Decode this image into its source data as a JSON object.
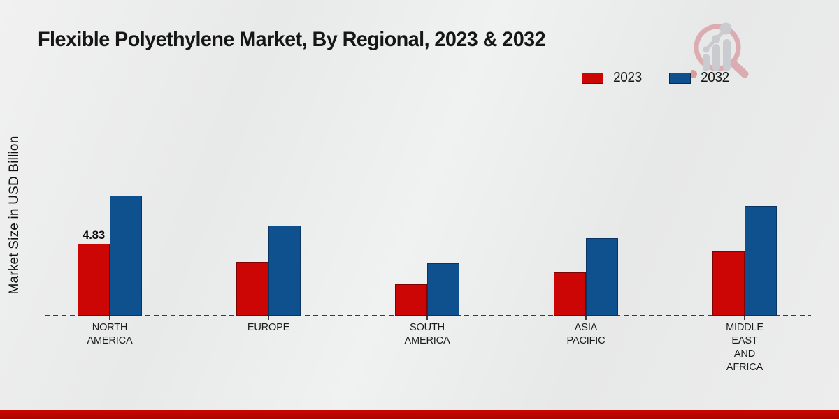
{
  "chart": {
    "title": "Flexible Polyethylene Market, By Regional, 2023 & 2032",
    "ylabel": "Market Size in USD Billion"
  },
  "legend": {
    "items": [
      {
        "label": "2023",
        "color": "#cc0605"
      },
      {
        "label": "2032",
        "color": "#0f518f"
      }
    ]
  },
  "chart_data": {
    "type": "bar",
    "title": "Flexible Polyethylene Market, By Regional, 2023 & 2032",
    "xlabel": "",
    "ylabel": "Market Size in USD Billion",
    "ylim": [
      0,
      9
    ],
    "grid": false,
    "legend_position": "top-right",
    "baseline_style": "dashed",
    "categories": [
      "NORTH AMERICA",
      "EUROPE",
      "SOUTH AMERICA",
      "ASIA PACIFIC",
      "MIDDLE EAST AND AFRICA"
    ],
    "category_label_lines": [
      [
        "NORTH",
        "AMERICA"
      ],
      [
        "EUROPE"
      ],
      [
        "SOUTH",
        "AMERICA"
      ],
      [
        "ASIA",
        "PACIFIC"
      ],
      [
        "MIDDLE",
        "EAST",
        "AND",
        "AFRICA"
      ]
    ],
    "series": [
      {
        "name": "2023",
        "color": "#cc0605",
        "border": "#7e0303",
        "values": [
          4.83,
          3.6,
          2.1,
          2.9,
          4.3
        ]
      },
      {
        "name": "2032",
        "color": "#0f518f",
        "border": "#0a3560",
        "values": [
          8.05,
          6.05,
          3.5,
          5.2,
          7.35
        ]
      }
    ],
    "data_labels": [
      {
        "series_index": 0,
        "category_index": 0,
        "text": "4.83"
      }
    ]
  },
  "colors": {
    "accent_red": "#c90700",
    "bar_red": "#cc0605",
    "bar_blue": "#0f518f",
    "background": "#e9eaea"
  }
}
